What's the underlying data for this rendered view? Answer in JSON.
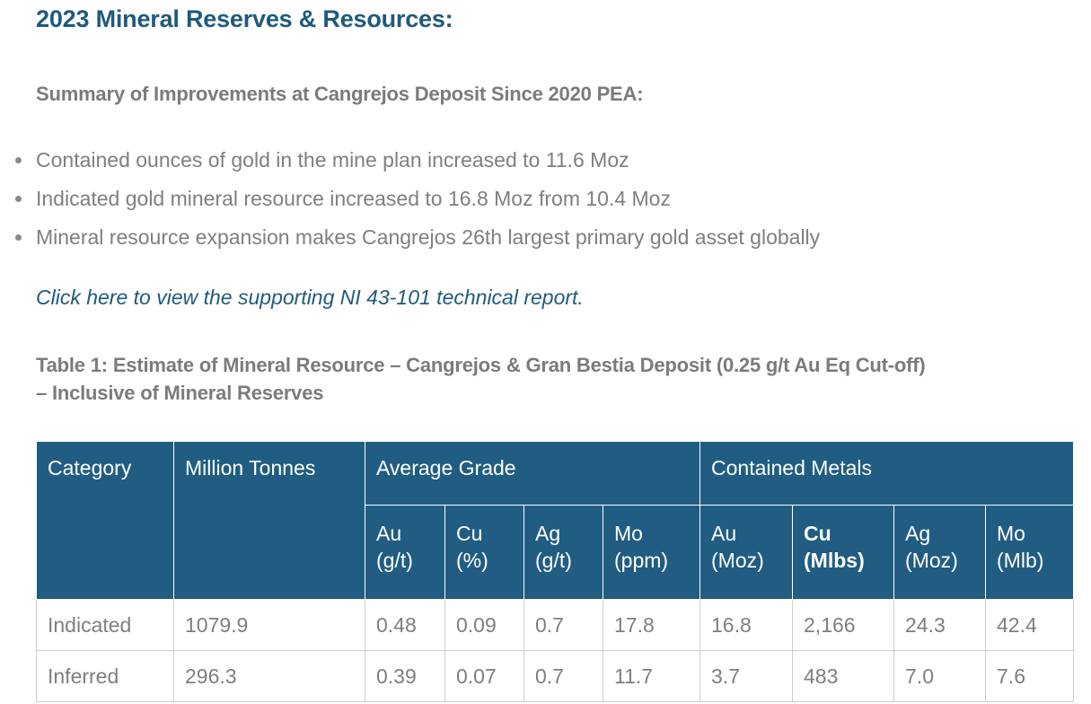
{
  "title": "2023 Mineral Reserves & Resources:",
  "summary_heading": "Summary of Improvements at Cangrejos Deposit Since 2020 PEA:",
  "bullets": [
    "Contained ounces of gold in the mine plan increased to 11.6 Moz",
    "Indicated gold mineral resource increased to 16.8 Moz from 10.4 Moz",
    "Mineral resource expansion makes Cangrejos 26th largest primary gold asset globally"
  ],
  "report_link": "Click here to view the supporting NI 43-101 technical report.",
  "table_caption_line1": "Table 1: Estimate of Mineral Resource – Cangrejos & Gran Bestia Deposit (0.25 g/t Au Eq Cut-off)",
  "table_caption_line2": "– Inclusive of Mineral Reserves",
  "table": {
    "headers": {
      "category": "Category",
      "tonnes": "Million Tonnes",
      "average_grade": "Average Grade",
      "contained_metals": "Contained Metals"
    },
    "subheaders": [
      {
        "line1": "Au",
        "line2": "(g/t)"
      },
      {
        "line1": "Cu",
        "line2": "(%)"
      },
      {
        "line1": "Ag",
        "line2": "(g/t)"
      },
      {
        "line1": "Mo",
        "line2": "(ppm)"
      },
      {
        "line1": "Au",
        "line2": "(Moz)"
      },
      {
        "line1": "Cu",
        "line2": "(Mlbs)"
      },
      {
        "line1": "Ag",
        "line2": "(Moz)"
      },
      {
        "line1": "Mo",
        "line2": "(Mlb)"
      }
    ],
    "rows": [
      [
        "Indicated",
        "1079.9",
        "0.48",
        "0.09",
        "0.7",
        "17.8",
        "16.8",
        "2,166",
        "24.3",
        "42.4"
      ],
      [
        "Inferred",
        "296.3",
        "0.39",
        "0.07",
        "0.7",
        "11.7",
        "3.7",
        "483",
        "7.0",
        "7.6"
      ]
    ]
  },
  "colors": {
    "heading_blue": "#1f5a7d",
    "header_fill": "#215d82",
    "body_text": "#7f7f7f"
  }
}
